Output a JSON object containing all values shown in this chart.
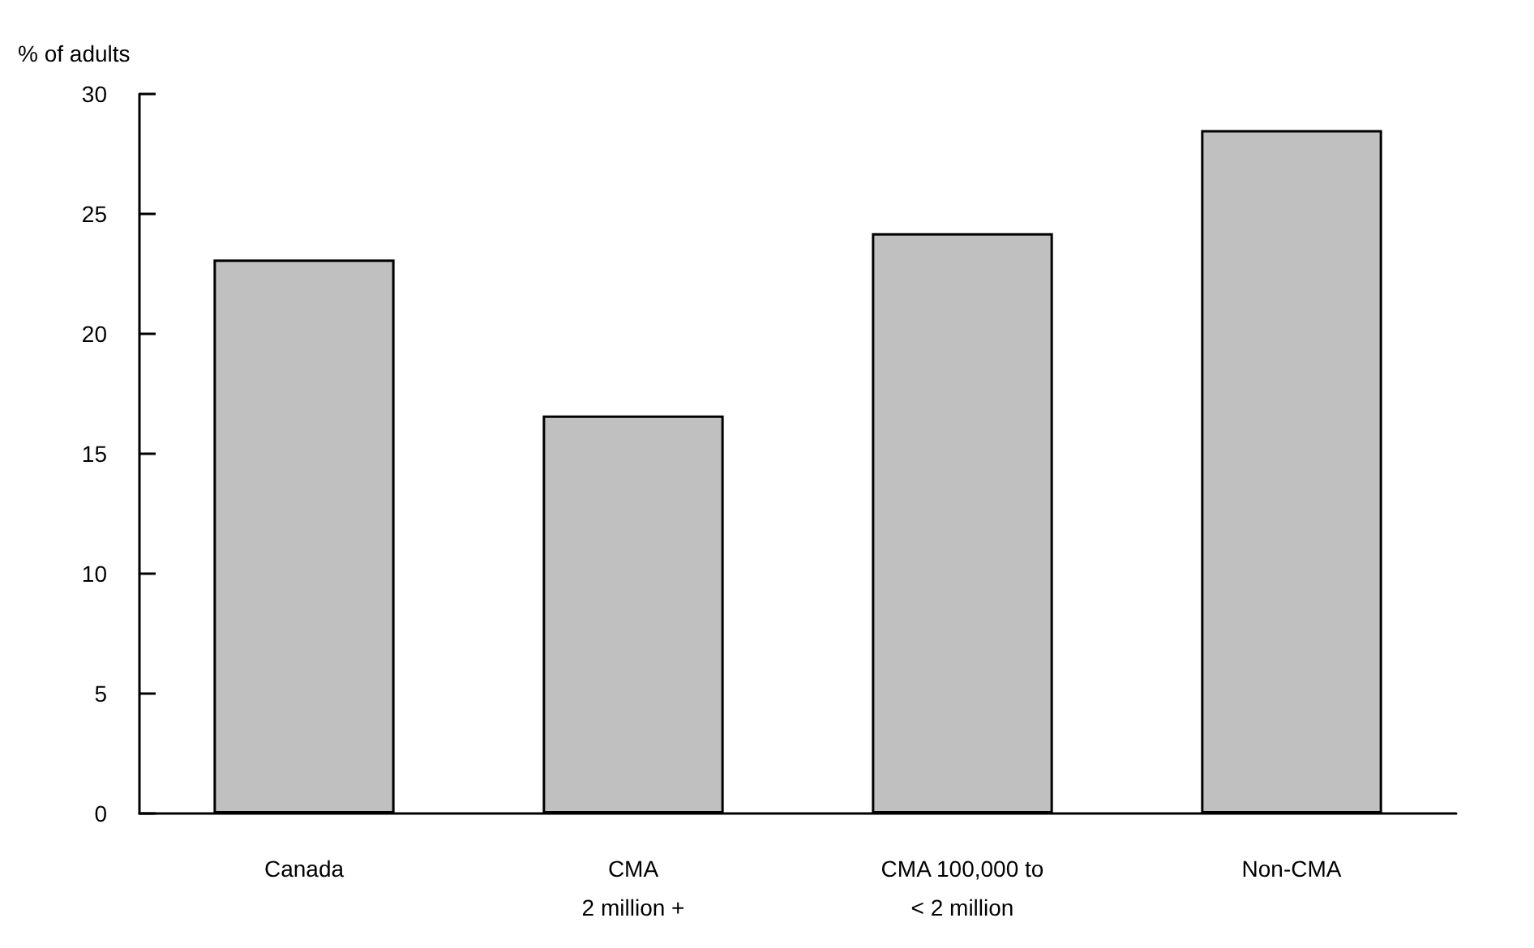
{
  "chart_data": {
    "type": "bar",
    "ylabel": "% of adults",
    "categories": [
      "Canada",
      "CMA\n2 million +",
      "CMA 100,000 to\n< 2 million",
      "Non-CMA"
    ],
    "values": [
      23.1,
      16.6,
      24.2,
      28.5
    ],
    "color": "#c0c0c0",
    "ylim": [
      0,
      30
    ],
    "yticks": [
      0,
      5,
      10,
      15,
      20,
      25,
      30
    ],
    "grid": false
  }
}
